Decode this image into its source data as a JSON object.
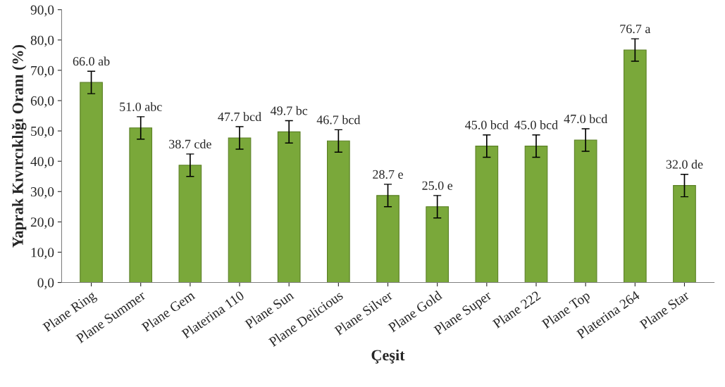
{
  "chart_data": {
    "type": "bar",
    "xlabel": "Çeşit",
    "ylabel": "Yaprak Kıvırcıklığı Oranı (%)",
    "categories": [
      "Plane Ring",
      "Plane Summer",
      "Plane Gem",
      "Platerina 110",
      "Plane Sun",
      "Plane Delicious",
      "Plane Silver",
      "Plane Gold",
      "Plane Super",
      "Plane 222",
      "Plane Top",
      "Platerina 264",
      "Plane Star"
    ],
    "values": [
      66.0,
      51.0,
      38.7,
      47.7,
      49.7,
      46.7,
      28.7,
      25.0,
      45.0,
      45.0,
      47.0,
      76.7,
      32.0
    ],
    "value_labels": [
      "66.0 ab",
      "51.0 abc",
      "38.7 cde",
      "47.7 bcd",
      "49.7 bc",
      "46.7 bcd",
      "28.7 e",
      "25.0 e",
      "45.0 bcd",
      "45.0 bcd",
      "47.0 bcd",
      "76.7 a",
      "32.0 de"
    ],
    "errors": [
      3.7,
      3.7,
      3.7,
      3.7,
      3.7,
      3.7,
      3.7,
      3.7,
      3.7,
      3.7,
      3.7,
      3.7,
      3.7
    ],
    "color": "#7aa83a",
    "ylim": [
      0,
      90
    ],
    "yticks": [
      {
        "value": 0,
        "label": "0,0"
      },
      {
        "value": 10,
        "label": "10,0"
      },
      {
        "value": 20,
        "label": "20,0"
      },
      {
        "value": 30,
        "label": "30,0"
      },
      {
        "value": 40,
        "label": "40,0"
      },
      {
        "value": 50,
        "label": "50,0"
      },
      {
        "value": 60,
        "label": "60,0"
      },
      {
        "value": 70,
        "label": "70,0"
      },
      {
        "value": 80,
        "label": "80,0"
      },
      {
        "value": 90,
        "label": "90,0"
      }
    ],
    "grid": false,
    "legend": false
  }
}
